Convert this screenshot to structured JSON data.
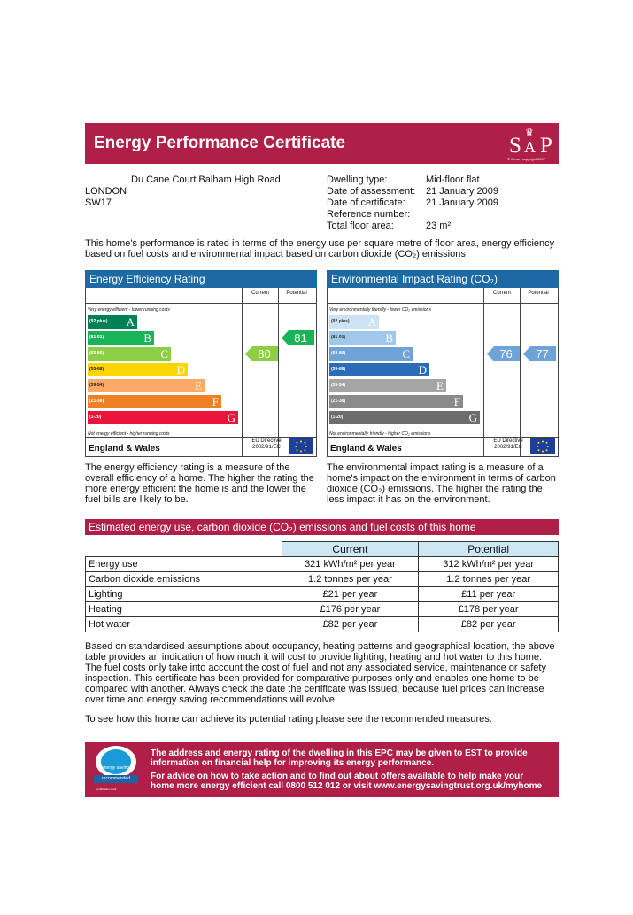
{
  "header": {
    "title": "Energy Performance Certificate",
    "logo_text": "SAP",
    "logo_caption": "© Crown copyright 2007"
  },
  "address": {
    "line1": "Du Cane Court Balham High Road",
    "line2": "LONDON",
    "line3": "SW17"
  },
  "dwelling": [
    {
      "label": "Dwelling type:",
      "value": "Mid-floor flat"
    },
    {
      "label": "Date of assessment:",
      "value": "21 January 2009"
    },
    {
      "label": "Date of certificate:",
      "value": "21 January 2009"
    },
    {
      "label": "Reference number:",
      "value": ""
    },
    {
      "label": "Total floor area:",
      "value": "23 m²"
    }
  ],
  "intro": "This home's performance is rated in terms of the energy use per square metre of floor area, energy efficiency based on fuel costs and environmental impact based on carbon dioxide (CO₂) emissions.",
  "col_current": "Current",
  "col_potential": "Potential",
  "region": "England & Wales",
  "eu_directive": [
    "EU Directive",
    "2002/91/EC"
  ],
  "ee": {
    "title": "Energy Efficiency Rating",
    "top_note": "Very energy efficient - lower running costs",
    "bottom_note": "Not energy efficient - higher running costs",
    "current": "80",
    "potential": "81",
    "description": "The energy efficiency rating is a measure of the overall efficiency of a home. The higher the rating the more energy efficient the home is and the lower the fuel bills are likely to be.",
    "bands": [
      {
        "range": "(92 plus)",
        "letter": "A",
        "color": "#008054"
      },
      {
        "range": "(81-91)",
        "letter": "B",
        "color": "#19b459"
      },
      {
        "range": "(69-80)",
        "letter": "C",
        "color": "#8dce46"
      },
      {
        "range": "(55-68)",
        "letter": "D",
        "color": "#ffd500"
      },
      {
        "range": "(39-54)",
        "letter": "E",
        "color": "#fcaa65"
      },
      {
        "range": "(21-38)",
        "letter": "F",
        "color": "#ef8023"
      },
      {
        "range": "(1-20)",
        "letter": "G",
        "color": "#e9153b"
      }
    ]
  },
  "ei": {
    "title": "Environmental Impact Rating (CO₂)",
    "top_note": "Very environmentally friendly - lower CO₂ emissions",
    "bottom_note": "Not environmentally friendly - higher CO₂ emissions",
    "current": "76",
    "potential": "77",
    "description": "The environmental impact rating is a measure of a home's impact on the environment in terms of carbon dioxide (CO₂) emissions. The higher the rating the less impact it has on the environment.",
    "bands": [
      {
        "range": "(92 plus)",
        "letter": "A",
        "color": "#cde3f5"
      },
      {
        "range": "(81-91)",
        "letter": "B",
        "color": "#9fc8ea"
      },
      {
        "range": "(69-80)",
        "letter": "C",
        "color": "#6fa3d8"
      },
      {
        "range": "(55-68)",
        "letter": "D",
        "color": "#2b6cb8"
      },
      {
        "range": "(39-54)",
        "letter": "E",
        "color": "#a5a5a5"
      },
      {
        "range": "(21-38)",
        "letter": "F",
        "color": "#8a8a8a"
      },
      {
        "range": "(1-20)",
        "letter": "G",
        "color": "#6d6d6d"
      }
    ]
  },
  "estimates": {
    "title": "Estimated energy use, carbon dioxide (CO₂) emissions and fuel costs of this home",
    "header": [
      "",
      "Current",
      "Potential"
    ],
    "rows": [
      [
        "Energy use",
        "321 kWh/m² per year",
        "312 kWh/m² per year"
      ],
      [
        "Carbon dioxide emissions",
        "1.2 tonnes per year",
        "1.2 tonnes per year"
      ],
      [
        "Lighting",
        "£21 per year",
        "£11 per year"
      ],
      [
        "Heating",
        "£176 per year",
        "£178 per year"
      ],
      [
        "Hot water",
        "£82 per year",
        "£82 per year"
      ]
    ]
  },
  "body_text": "Based on standardised assumptions about occupancy, heating patterns and geographical location, the above table provides an indication of how much it will cost to provide lighting, heating and hot water to this home. The fuel costs only take into account the cost of fuel and not any associated service, maintenance or safety inspection. This certificate has been provided for comparative purposes only and enables one home to be compared with another. Always check the date the certificate was issued, because fuel prices can increase over time and energy saving recommendations will evolve.",
  "recommend_text": "To see how this home can achieve its potential rating please see the recommended measures.",
  "footer": {
    "text1": "The address and energy rating of the dwelling in this EPC may be given to EST to provide information on financial help for improving its energy performance.",
    "text2": "For advice on how to take action and to find out about offers available to help make your home more energy efficient call 0800 512 012 or visit www.energysavingtrust.org.uk/myhome",
    "logo_top": "energy saving",
    "logo_bottom": "recommended",
    "logo_caption": "Certification mark"
  }
}
